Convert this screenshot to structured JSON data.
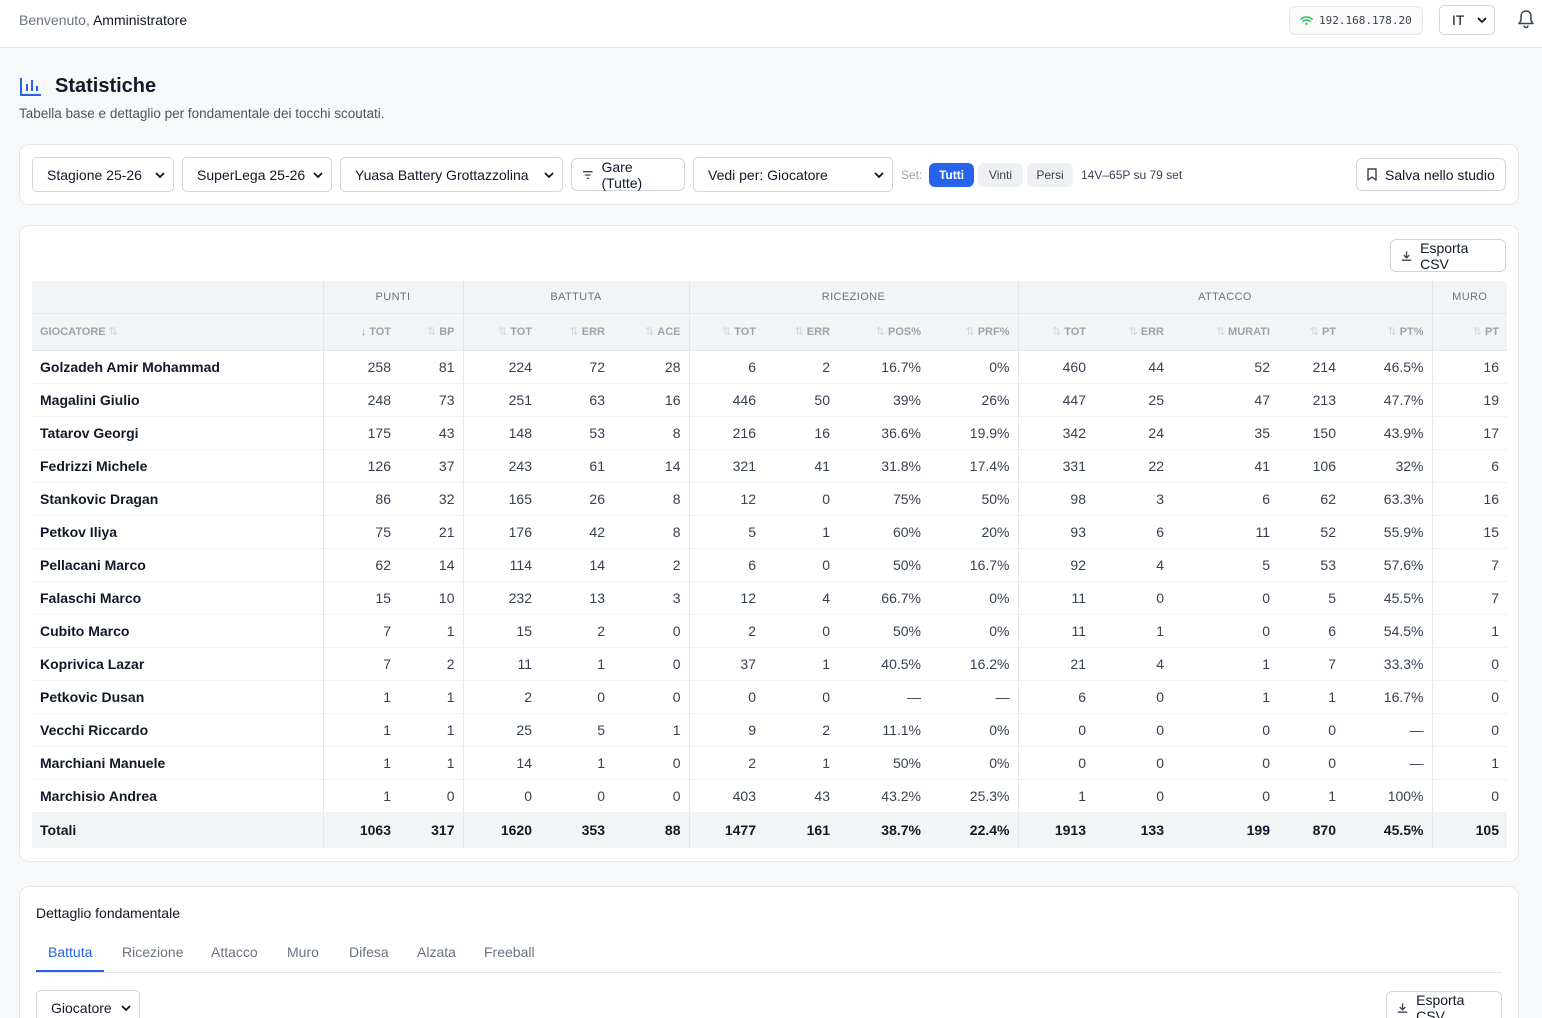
{
  "header": {
    "welcome_prefix": "Benvenuto,",
    "user_name": "Amministratore",
    "ip_address": "192.168.178.20",
    "language": "IT"
  },
  "page": {
    "title": "Statistiche",
    "subtitle": "Tabella base e dettaglio per fondamentale dei tocchi scoutati."
  },
  "filters": {
    "season": "Stagione 25-26",
    "competition": "SuperLega 25-26",
    "team": "Yuasa Battery Grottazzolina",
    "games_button": "Gare (Tutte)",
    "view_by": "Vedi per: Giocatore",
    "set_label": "Set:",
    "set_options": [
      "Tutti",
      "Vinti",
      "Persi"
    ],
    "set_selected": "Tutti",
    "record": "14V–65P su 79 set",
    "save_button": "Salva nello studio"
  },
  "table": {
    "export_button": "Esporta CSV",
    "groups": [
      "PUNTI",
      "BATTUTA",
      "RICEZIONE",
      "ATTACCO",
      "MURO"
    ],
    "player_header": "GIOCATORE",
    "columns": [
      "TOT",
      "BP",
      "TOT",
      "ERR",
      "ACE",
      "TOT",
      "ERR",
      "POS%",
      "PRF%",
      "TOT",
      "ERR",
      "MURATI",
      "PT",
      "PT%",
      "PT"
    ],
    "rows": [
      {
        "name": "Golzadeh Amir Mohammad",
        "values": [
          "258",
          "81",
          "224",
          "72",
          "28",
          "6",
          "2",
          "16.7%",
          "0%",
          "460",
          "44",
          "52",
          "214",
          "46.5%",
          "16"
        ]
      },
      {
        "name": "Magalini Giulio",
        "values": [
          "248",
          "73",
          "251",
          "63",
          "16",
          "446",
          "50",
          "39%",
          "26%",
          "447",
          "25",
          "47",
          "213",
          "47.7%",
          "19"
        ]
      },
      {
        "name": "Tatarov Georgi",
        "values": [
          "175",
          "43",
          "148",
          "53",
          "8",
          "216",
          "16",
          "36.6%",
          "19.9%",
          "342",
          "24",
          "35",
          "150",
          "43.9%",
          "17"
        ]
      },
      {
        "name": "Fedrizzi Michele",
        "values": [
          "126",
          "37",
          "243",
          "61",
          "14",
          "321",
          "41",
          "31.8%",
          "17.4%",
          "331",
          "22",
          "41",
          "106",
          "32%",
          "6"
        ]
      },
      {
        "name": "Stankovic Dragan",
        "values": [
          "86",
          "32",
          "165",
          "26",
          "8",
          "12",
          "0",
          "75%",
          "50%",
          "98",
          "3",
          "6",
          "62",
          "63.3%",
          "16"
        ]
      },
      {
        "name": "Petkov Iliya",
        "values": [
          "75",
          "21",
          "176",
          "42",
          "8",
          "5",
          "1",
          "60%",
          "20%",
          "93",
          "6",
          "11",
          "52",
          "55.9%",
          "15"
        ]
      },
      {
        "name": "Pellacani Marco",
        "values": [
          "62",
          "14",
          "114",
          "14",
          "2",
          "6",
          "0",
          "50%",
          "16.7%",
          "92",
          "4",
          "5",
          "53",
          "57.6%",
          "7"
        ]
      },
      {
        "name": "Falaschi Marco",
        "values": [
          "15",
          "10",
          "232",
          "13",
          "3",
          "12",
          "4",
          "66.7%",
          "0%",
          "11",
          "0",
          "0",
          "5",
          "45.5%",
          "7"
        ]
      },
      {
        "name": "Cubito Marco",
        "values": [
          "7",
          "1",
          "15",
          "2",
          "0",
          "2",
          "0",
          "50%",
          "0%",
          "11",
          "1",
          "0",
          "6",
          "54.5%",
          "1"
        ]
      },
      {
        "name": "Koprivica Lazar",
        "values": [
          "7",
          "2",
          "11",
          "1",
          "0",
          "37",
          "1",
          "40.5%",
          "16.2%",
          "21",
          "4",
          "1",
          "7",
          "33.3%",
          "0"
        ]
      },
      {
        "name": "Petkovic Dusan",
        "values": [
          "1",
          "1",
          "2",
          "0",
          "0",
          "0",
          "0",
          "—",
          "—",
          "6",
          "0",
          "1",
          "1",
          "16.7%",
          "0"
        ]
      },
      {
        "name": "Vecchi Riccardo",
        "values": [
          "1",
          "1",
          "25",
          "5",
          "1",
          "9",
          "2",
          "11.1%",
          "0%",
          "0",
          "0",
          "0",
          "0",
          "—",
          "0"
        ]
      },
      {
        "name": "Marchiani Manuele",
        "values": [
          "1",
          "1",
          "14",
          "1",
          "0",
          "2",
          "1",
          "50%",
          "0%",
          "0",
          "0",
          "0",
          "0",
          "—",
          "1"
        ]
      },
      {
        "name": "Marchisio Andrea",
        "values": [
          "1",
          "0",
          "0",
          "0",
          "0",
          "403",
          "43",
          "43.2%",
          "25.3%",
          "1",
          "0",
          "0",
          "1",
          "100%",
          "0"
        ]
      }
    ],
    "totals": {
      "name": "Totali",
      "values": [
        "1063",
        "317",
        "1620",
        "353",
        "88",
        "1477",
        "161",
        "38.7%",
        "22.4%",
        "1913",
        "133",
        "199",
        "870",
        "45.5%",
        "105"
      ]
    }
  },
  "detail": {
    "title": "Dettaglio fondamentale",
    "tabs": [
      "Battuta",
      "Ricezione",
      "Attacco",
      "Muro",
      "Difesa",
      "Alzata",
      "Freeball"
    ],
    "active_tab": "Battuta",
    "group_by": "Giocatore",
    "export_button": "Esporta CSV"
  },
  "colors": {
    "accent": "#2563eb",
    "wifi": "#22c55e"
  }
}
